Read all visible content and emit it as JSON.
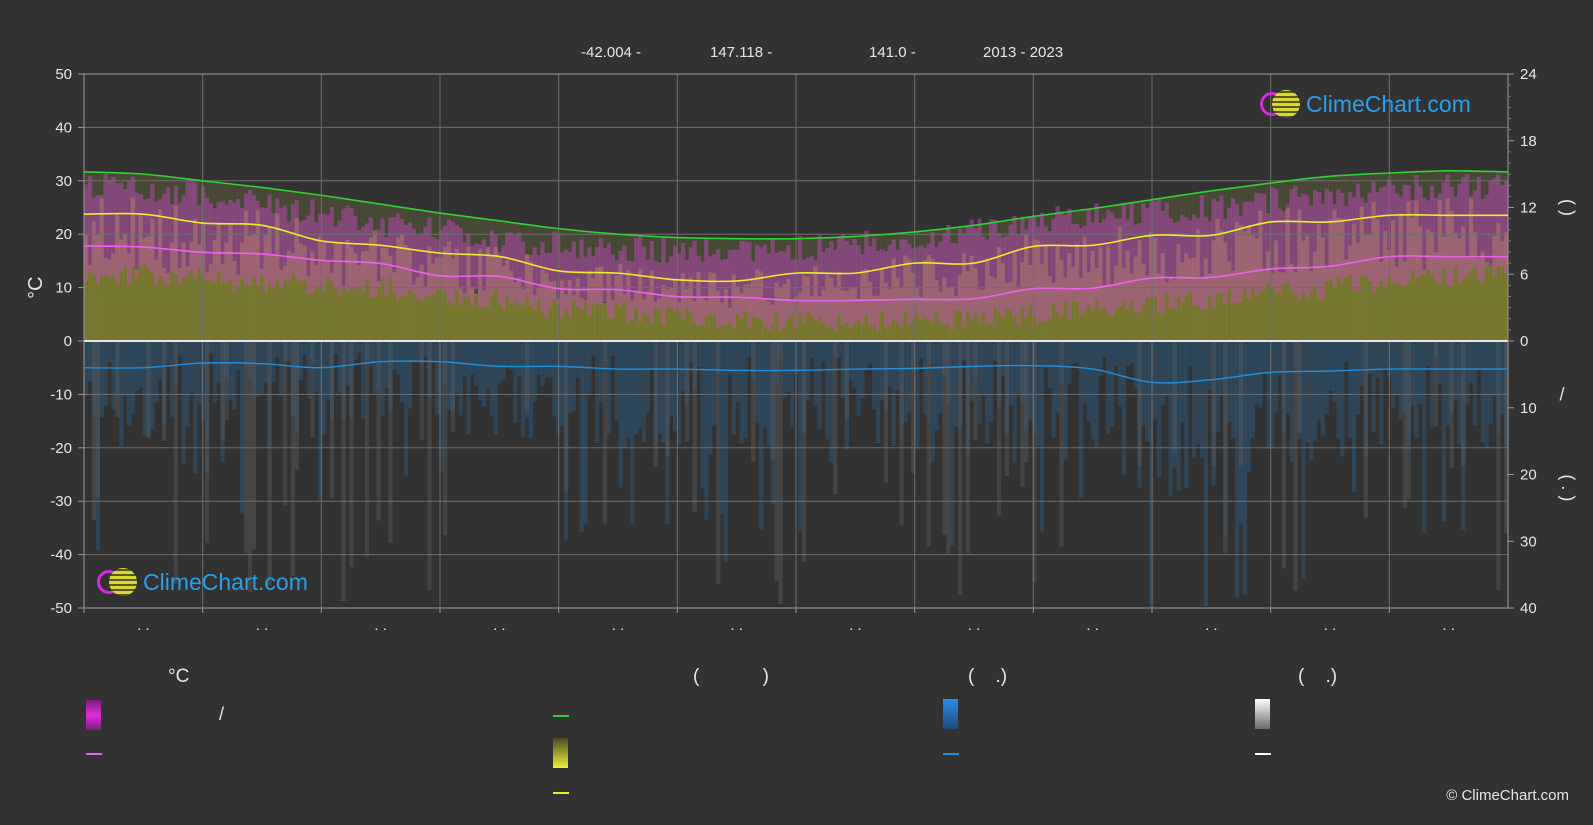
{
  "header": {
    "lat": "-42.004 -",
    "lon": "147.118 -",
    "elev": "141.0 -",
    "years": "2013 - 2023"
  },
  "logo_text": "ClimeChart.com",
  "copyright": "© ClimeChart.com",
  "legend": {
    "col1_title": "°C",
    "col1_row1_text": "/",
    "col2_title": "(            )",
    "col3_title": "(    .)",
    "col4_title": "(    .)"
  },
  "colors": {
    "background": "#323232",
    "daylight_line": "#30d230",
    "sunshine_line": "#ecec2c",
    "temp_line": "#f060f0",
    "rain_line": "#1e90e0",
    "temp_band": "#d24bd2",
    "sunshine_band": "#9c9c2c",
    "rain_band": "#2a6ea0",
    "snow_line": "#ffffff"
  },
  "chart_data": {
    "type": "line",
    "x_tick_labels": [
      ". .",
      ". .",
      ". .",
      ". .",
      ". .",
      ". .",
      ". .",
      ". .",
      ". .",
      ". .",
      ". .",
      ". ."
    ],
    "y_left": {
      "label": "°C",
      "range": [
        -50,
        50
      ],
      "ticks": [
        50,
        40,
        30,
        20,
        10,
        0,
        -10,
        -20,
        -30,
        -40,
        -50
      ]
    },
    "y_right_top": {
      "range": [
        0,
        24
      ],
      "ticks": [
        24,
        18,
        12,
        6,
        0
      ],
      "label": "(      )"
    },
    "y_right_bottom": {
      "range": [
        0,
        40
      ],
      "ticks": [
        0,
        10,
        20,
        30,
        40
      ],
      "label": "(  .   )",
      "label2": "/"
    },
    "grid": true,
    "x": [
      0,
      0.5,
      1,
      1.5,
      2,
      2.5,
      3,
      3.5,
      4,
      4.5,
      5,
      5.5,
      6,
      6.5,
      7,
      7.5,
      8,
      8.5,
      9,
      9.5,
      10,
      10.5,
      11,
      11.5,
      12
    ],
    "series": [
      {
        "key": "daylight",
        "unit": "h",
        "values": [
          15.2,
          15.0,
          14.4,
          13.8,
          13.1,
          12.3,
          11.5,
          10.8,
          10.1,
          9.6,
          9.3,
          9.2,
          9.2,
          9.4,
          9.8,
          10.4,
          11.2,
          11.9,
          12.7,
          13.5,
          14.2,
          14.8,
          15.1,
          15.3,
          15.2
        ]
      },
      {
        "key": "sunshine",
        "unit": "h",
        "values": [
          11.4,
          11.4,
          10.6,
          10.4,
          9.0,
          8.6,
          7.9,
          7.6,
          6.3,
          6.1,
          5.5,
          5.4,
          6.1,
          6.1,
          7.0,
          7.0,
          8.5,
          8.6,
          9.5,
          9.5,
          10.7,
          10.7,
          11.3,
          11.3,
          11.3
        ]
      },
      {
        "key": "temp_mean",
        "unit": "°C",
        "values": [
          17.8,
          17.6,
          16.6,
          16.3,
          15.1,
          14.5,
          12.2,
          12.1,
          9.8,
          9.6,
          8.3,
          8.2,
          7.6,
          7.6,
          7.8,
          7.9,
          9.8,
          9.9,
          11.8,
          11.9,
          13.5,
          14.0,
          15.8,
          15.8,
          15.8
        ]
      },
      {
        "key": "rain",
        "unit": "mm",
        "values": [
          4.0,
          4.0,
          3.3,
          3.4,
          4.0,
          3.1,
          3.1,
          3.8,
          3.8,
          4.2,
          4.2,
          4.4,
          4.4,
          4.2,
          4.1,
          3.8,
          3.7,
          4.2,
          6.2,
          5.8,
          4.7,
          4.5,
          4.2,
          4.2,
          4.2
        ]
      },
      {
        "key": "temp_max_band",
        "unit": "°C",
        "values": [
          29.0,
          28.6,
          27.5,
          25.5,
          24.0,
          22.0,
          20.5,
          19.0,
          18.0,
          17.5,
          17.0,
          17.2,
          17.5,
          18.0,
          19.5,
          21.0,
          22.5,
          23.5,
          24.5,
          25.0,
          26.5,
          27.5,
          28.5,
          29.0,
          29.0
        ]
      },
      {
        "key": "temp_min_band",
        "unit": "°C",
        "values": [
          12.5,
          12.3,
          11.5,
          11.0,
          10.5,
          10.0,
          8.5,
          7.5,
          6.0,
          5.5,
          4.5,
          4.0,
          3.5,
          3.5,
          3.5,
          4.0,
          5.0,
          6.0,
          7.0,
          8.0,
          9.0,
          10.0,
          11.0,
          12.0,
          12.5
        ]
      }
    ]
  }
}
